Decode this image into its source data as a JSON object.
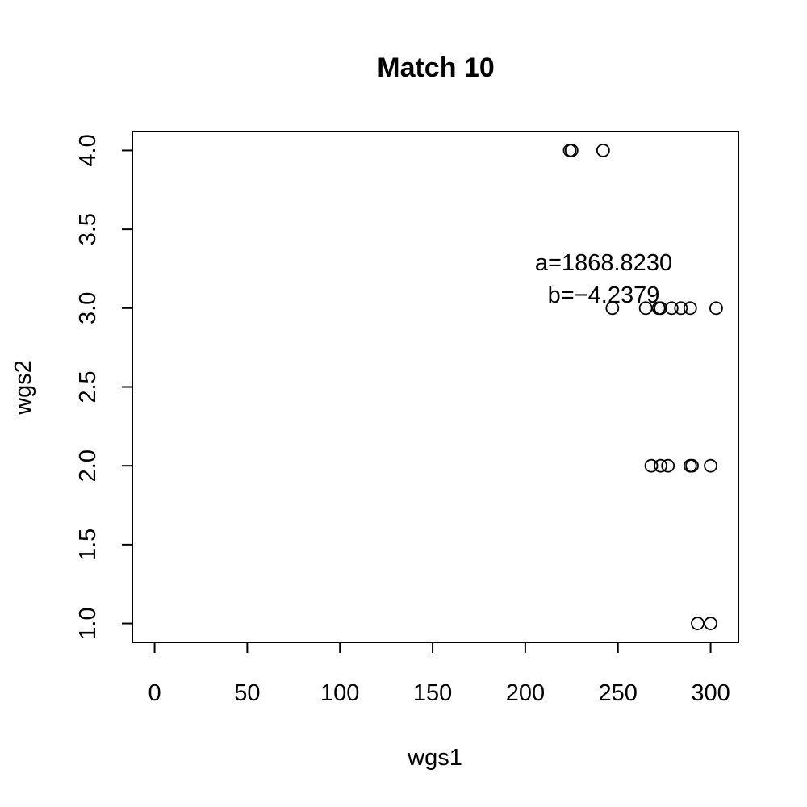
{
  "chart_data": {
    "type": "scatter",
    "title": "Match 10",
    "xlabel": "wgs1",
    "ylabel": "wgs2",
    "xlim": [
      -12,
      315
    ],
    "ylim": [
      0.88,
      4.12
    ],
    "xticks": [
      0,
      50,
      100,
      150,
      200,
      250,
      300
    ],
    "yticks": [
      1.0,
      1.5,
      2.0,
      2.5,
      3.0,
      3.5,
      4.0
    ],
    "x_tick_labels": [
      "0",
      "50",
      "100",
      "150",
      "200",
      "250",
      "300"
    ],
    "y_tick_labels": [
      "1.0",
      "1.5",
      "2.0",
      "2.5",
      "3.0",
      "3.5",
      "4.0"
    ],
    "grid": false,
    "legend": "none",
    "series": [
      {
        "x": [
          224,
          225,
          242,
          247,
          265,
          272,
          273,
          279,
          284,
          289,
          303,
          268,
          273,
          277,
          289,
          290,
          300,
          293,
          300
        ],
        "y": [
          4,
          4,
          4,
          3,
          3,
          3,
          3,
          3,
          3,
          3,
          3,
          2,
          2,
          2,
          2,
          2,
          2,
          1,
          1
        ]
      }
    ],
    "fit": {
      "model": "power",
      "a": 1868.823,
      "b": -4.2379,
      "x_range": [
        227,
        315
      ]
    },
    "annotations": [
      "a=1868.8230",
      "b=−4.2379"
    ]
  }
}
